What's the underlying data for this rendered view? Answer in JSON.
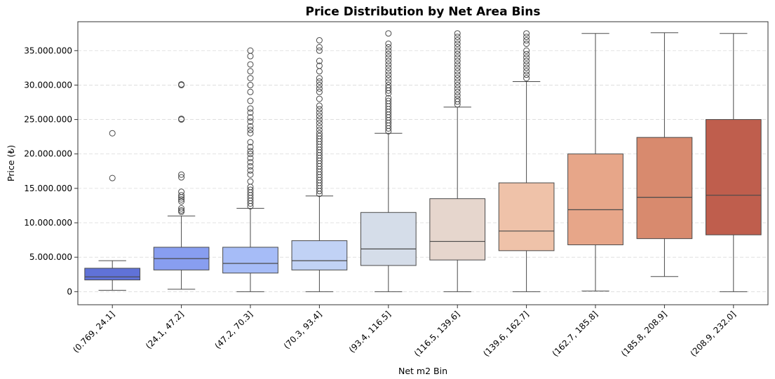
{
  "chart_data": {
    "type": "box",
    "title": "Price Distribution by Net Area Bins",
    "xlabel": "Net m2 Bin",
    "ylabel": "Price (₺)",
    "ylim": [
      -1900000,
      39200000
    ],
    "yticks": [
      0,
      5000000,
      10000000,
      15000000,
      20000000,
      25000000,
      30000000,
      35000000
    ],
    "ytick_labels": [
      "0",
      "5.000.000",
      "10.000.000",
      "15.000.000",
      "20.000.000",
      "25.000.000",
      "30.000.000",
      "35.000.000"
    ],
    "grid": "horizontal dashed",
    "categories": [
      "(0.769, 24.1]",
      "(24.1, 47.2]",
      "(47.2, 70.3]",
      "(70.3, 93.4]",
      "(93.4, 116.5]",
      "(116.5, 139.6]",
      "(139.6, 162.7]",
      "(162.7, 185.8]",
      "(185.8, 208.9]",
      "(208.9, 232.0]"
    ],
    "colors": [
      "#6072d8",
      "#889ef0",
      "#a6bcf7",
      "#c1d2f5",
      "#d5dde9",
      "#e6d6cd",
      "#efc2a9",
      "#e7a689",
      "#d88a6e",
      "#bf5e4d"
    ],
    "boxes": [
      {
        "whislo": 200000,
        "q1": 1700000,
        "med": 2150000,
        "q3": 3400000,
        "whishi": 4500000,
        "fliers": [
          16500000,
          23000000
        ]
      },
      {
        "whislo": 350000,
        "q1": 3150000,
        "med": 4800000,
        "q3": 6450000,
        "whishi": 11000000,
        "fliers": [
          11600000,
          11800000,
          12100000,
          13100000,
          13400000,
          13700000,
          14000000,
          14500000,
          16600000,
          17000000,
          25000000,
          25100000,
          30000000,
          30100000
        ]
      },
      {
        "whislo": 0,
        "q1": 2700000,
        "med": 4100000,
        "q3": 6450000,
        "whishi": 12100000,
        "fliers": [
          12400000,
          12800000,
          13200000,
          13600000,
          14000000,
          14400000,
          14800000,
          15200000,
          16000000,
          17000000,
          17600000,
          18200000,
          18800000,
          19400000,
          20000000,
          20400000,
          21000000,
          21700000,
          23000000,
          23500000,
          24000000,
          24700000,
          25300000,
          26000000,
          26600000,
          27700000,
          29000000,
          30000000,
          31000000,
          32000000,
          33000000,
          34200000,
          35000000
        ]
      },
      {
        "whislo": 0,
        "q1": 3150000,
        "med": 4500000,
        "q3": 7400000,
        "whishi": 13900000,
        "fliers": [
          14200000,
          14600000,
          15000000,
          15400000,
          15800000,
          16200000,
          16600000,
          17000000,
          17400000,
          17800000,
          18200000,
          18600000,
          19000000,
          19400000,
          19800000,
          20200000,
          20600000,
          21000000,
          21400000,
          21800000,
          22200000,
          22600000,
          23000000,
          23500000,
          24000000,
          24500000,
          25000000,
          25500000,
          26000000,
          26500000,
          27000000,
          28000000,
          29000000,
          29500000,
          30000000,
          30500000,
          31000000,
          32000000,
          32800000,
          33500000,
          35000000,
          35500000,
          36500000
        ]
      },
      {
        "whislo": 0,
        "q1": 3800000,
        "med": 6200000,
        "q3": 11500000,
        "whishi": 23000000,
        "fliers": [
          23300000,
          23700000,
          24100000,
          24500000,
          24900000,
          25300000,
          25700000,
          26100000,
          26500000,
          26900000,
          27300000,
          27700000,
          28100000,
          28800000,
          29200000,
          29600000,
          30000000,
          30500000,
          31000000,
          31500000,
          32000000,
          32500000,
          33000000,
          33500000,
          34000000,
          34500000,
          35000000,
          35500000,
          36000000,
          37500000
        ]
      },
      {
        "whislo": 0,
        "q1": 4600000,
        "med": 7300000,
        "q3": 13500000,
        "whishi": 26800000,
        "fliers": [
          27200000,
          27600000,
          28000000,
          28500000,
          29000000,
          29500000,
          30000000,
          30500000,
          31000000,
          31500000,
          32000000,
          32500000,
          33000000,
          33500000,
          34000000,
          34500000,
          35000000,
          35500000,
          36000000,
          36500000,
          37000000,
          37500000
        ]
      },
      {
        "whislo": 0,
        "q1": 5950000,
        "med": 8800000,
        "q3": 15800000,
        "whishi": 30500000,
        "fliers": [
          31000000,
          31500000,
          32000000,
          32500000,
          33000000,
          33500000,
          34000000,
          34500000,
          35000000,
          36000000,
          36500000,
          37000000,
          37500000
        ]
      },
      {
        "whislo": 100000,
        "q1": 6800000,
        "med": 11900000,
        "q3": 20000000,
        "whishi": 37500000,
        "fliers": []
      },
      {
        "whislo": 2200000,
        "q1": 7700000,
        "med": 13700000,
        "q3": 22400000,
        "whishi": 37600000,
        "fliers": []
      },
      {
        "whislo": 0,
        "q1": 8250000,
        "med": 14000000,
        "q3": 25000000,
        "whishi": 37500000,
        "fliers": []
      }
    ]
  }
}
